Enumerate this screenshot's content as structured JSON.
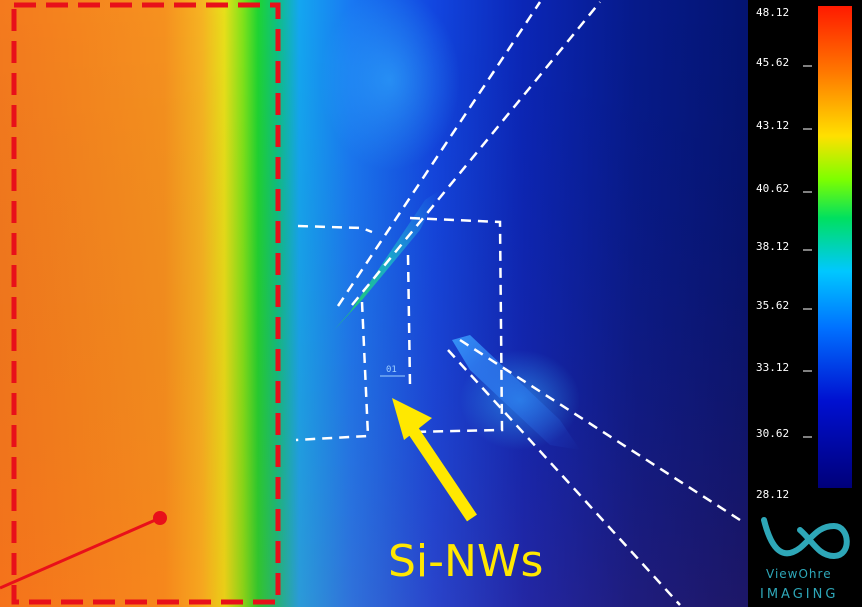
{
  "image": {
    "callout_label": "Si-NWs",
    "probe_label": "01"
  },
  "scale_bar": {
    "ticks": [
      "48.12",
      "45.62",
      "43.12",
      "40.62",
      "38.12",
      "35.62",
      "33.12",
      "30.62",
      "28.12"
    ],
    "gradient_colors": [
      "#ff1a00",
      "#ff7a00",
      "#ffe000",
      "#7dff00",
      "#00e060",
      "#00c8ff",
      "#0070ff",
      "#0010d0",
      "#00007a"
    ]
  },
  "logo": {
    "line1": "ViewOhre",
    "line2": "IMAGING"
  },
  "colors": {
    "hot": "#f5822a",
    "highlight_dashes": "#e8101a",
    "arrow": "#ffe800",
    "guide_dashes": "#ffffff"
  }
}
